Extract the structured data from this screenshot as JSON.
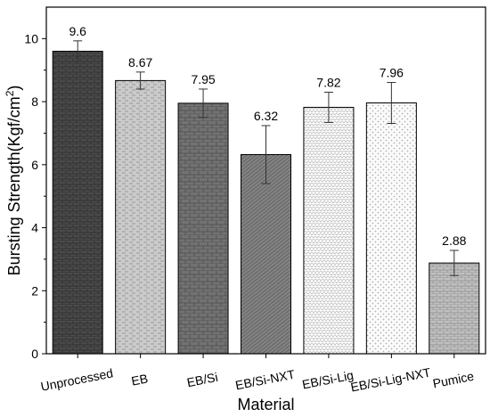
{
  "chart_data": {
    "type": "bar",
    "xlabel": "Material",
    "ylabel_main": "Bursting Strength",
    "ylabel_unit_prefix": "(Kgf/cm",
    "ylabel_unit_sup": "2",
    "ylabel_unit_suffix": ")",
    "ylim": [
      0,
      11
    ],
    "yticks": [
      0,
      2,
      4,
      6,
      8,
      10
    ],
    "categories": [
      "Unprocessed",
      "EB",
      "EB/Si",
      "EB/Si-NXT",
      "EB/Si-Lig",
      "EB/Si-Lig-NXT",
      "Pumice"
    ],
    "values": [
      9.6,
      8.67,
      7.95,
      6.32,
      7.82,
      7.96,
      2.88
    ],
    "value_labels": [
      "9.6",
      "8.67",
      "7.95",
      "6.32",
      "7.82",
      "7.96",
      "2.88"
    ],
    "errors": [
      0.33,
      0.27,
      0.45,
      0.92,
      0.48,
      0.65,
      0.4
    ],
    "bar_fills": [
      "#4a4a4a",
      "#c8c8c8",
      "#707070",
      "#808080",
      "#f4f4f4",
      "#f6f6f6",
      "#bdbdbd"
    ],
    "grid": false
  }
}
